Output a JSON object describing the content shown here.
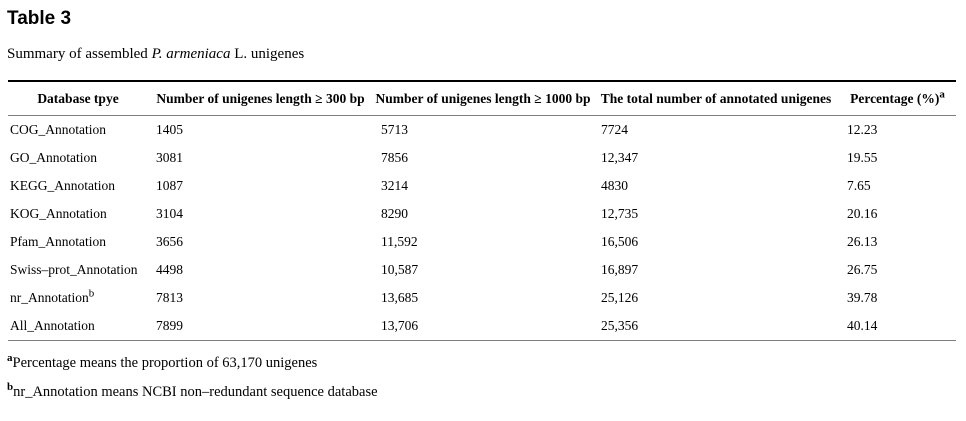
{
  "page": {
    "title": "Table 3",
    "caption": {
      "prefix": "Summary of assembled ",
      "species_italic": "P. armeniaca",
      "suffix": " L. unigenes"
    }
  },
  "table": {
    "columns": [
      {
        "label": "Database tpye",
        "sup": ""
      },
      {
        "label": "Number of unigenes length ≥ 300 bp",
        "sup": ""
      },
      {
        "label": "Number of unigenes length ≥ 1000 bp",
        "sup": ""
      },
      {
        "label": "The total number of annotated unigenes",
        "sup": ""
      },
      {
        "label": "Percentage (%)",
        "sup": "a"
      }
    ],
    "rows": [
      {
        "database": "COG_Annotation",
        "sup": "",
        "n300": "1405",
        "n1000": "5713",
        "total": "7724",
        "pct": "12.23"
      },
      {
        "database": "GO_Annotation",
        "sup": "",
        "n300": "3081",
        "n1000": "7856",
        "total": "12,347",
        "pct": "19.55"
      },
      {
        "database": "KEGG_Annotation",
        "sup": "",
        "n300": "1087",
        "n1000": "3214",
        "total": "4830",
        "pct": "7.65"
      },
      {
        "database": "KOG_Annotation",
        "sup": "",
        "n300": "3104",
        "n1000": "8290",
        "total": "12,735",
        "pct": "20.16"
      },
      {
        "database": "Pfam_Annotation",
        "sup": "",
        "n300": "3656",
        "n1000": "11,592",
        "total": "16,506",
        "pct": "26.13"
      },
      {
        "database": "Swiss–prot_Annotation",
        "sup": "",
        "n300": "4498",
        "n1000": "10,587",
        "total": "16,897",
        "pct": "26.75"
      },
      {
        "database": "nr_Annotation",
        "sup": "b",
        "n300": "7813",
        "n1000": "13,685",
        "total": "25,126",
        "pct": "39.78"
      },
      {
        "database": "All_Annotation",
        "sup": "",
        "n300": "7899",
        "n1000": "13,706",
        "total": "25,356",
        "pct": "40.14"
      }
    ]
  },
  "footnotes": [
    {
      "sup": "a",
      "text": "Percentage means the proportion of 63,170 unigenes"
    },
    {
      "sup": "b",
      "text": "nr_Annotation means NCBI non–redundant sequence database"
    }
  ]
}
